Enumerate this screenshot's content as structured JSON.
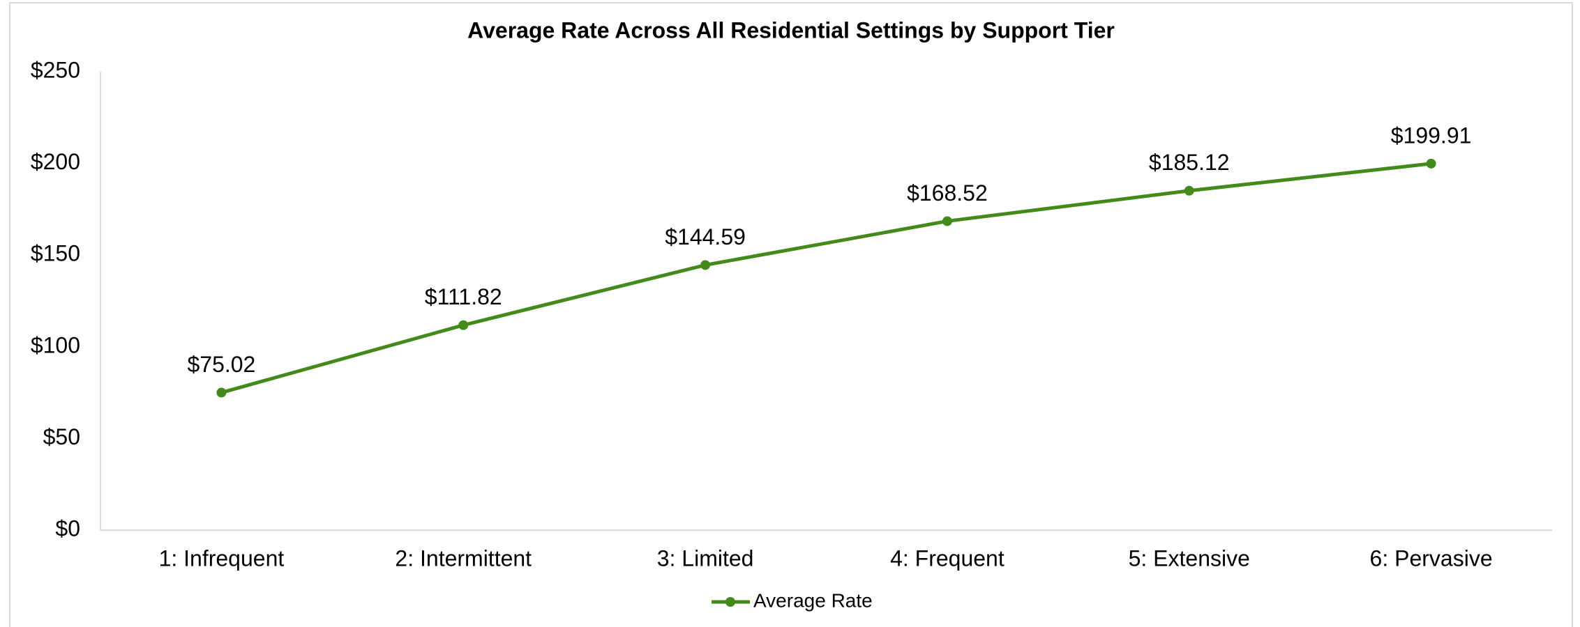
{
  "chart_data": {
    "type": "line",
    "title": "Average Rate Across All Residential Settings by Support Tier",
    "categories": [
      "1: Infrequent",
      "2: Intermittent",
      "3: Limited",
      "4: Frequent",
      "5: Extensive",
      "6: Pervasive"
    ],
    "series": [
      {
        "name": "Average Rate",
        "color": "#438a1a",
        "values": [
          75.02,
          111.82,
          144.59,
          168.52,
          185.12,
          199.91
        ],
        "value_labels": [
          "$75.02",
          "$111.82",
          "$144.59",
          "$168.52",
          "$185.12",
          "$199.91"
        ]
      }
    ],
    "ylim": [
      0,
      250
    ],
    "yticks": [
      {
        "value": 0,
        "label": "$0"
      },
      {
        "value": 50,
        "label": "$50"
      },
      {
        "value": 100,
        "label": "$100"
      },
      {
        "value": 150,
        "label": "$150"
      },
      {
        "value": 200,
        "label": "$200"
      },
      {
        "value": 250,
        "label": "$250"
      }
    ],
    "grid": false,
    "legend": "bottom"
  }
}
